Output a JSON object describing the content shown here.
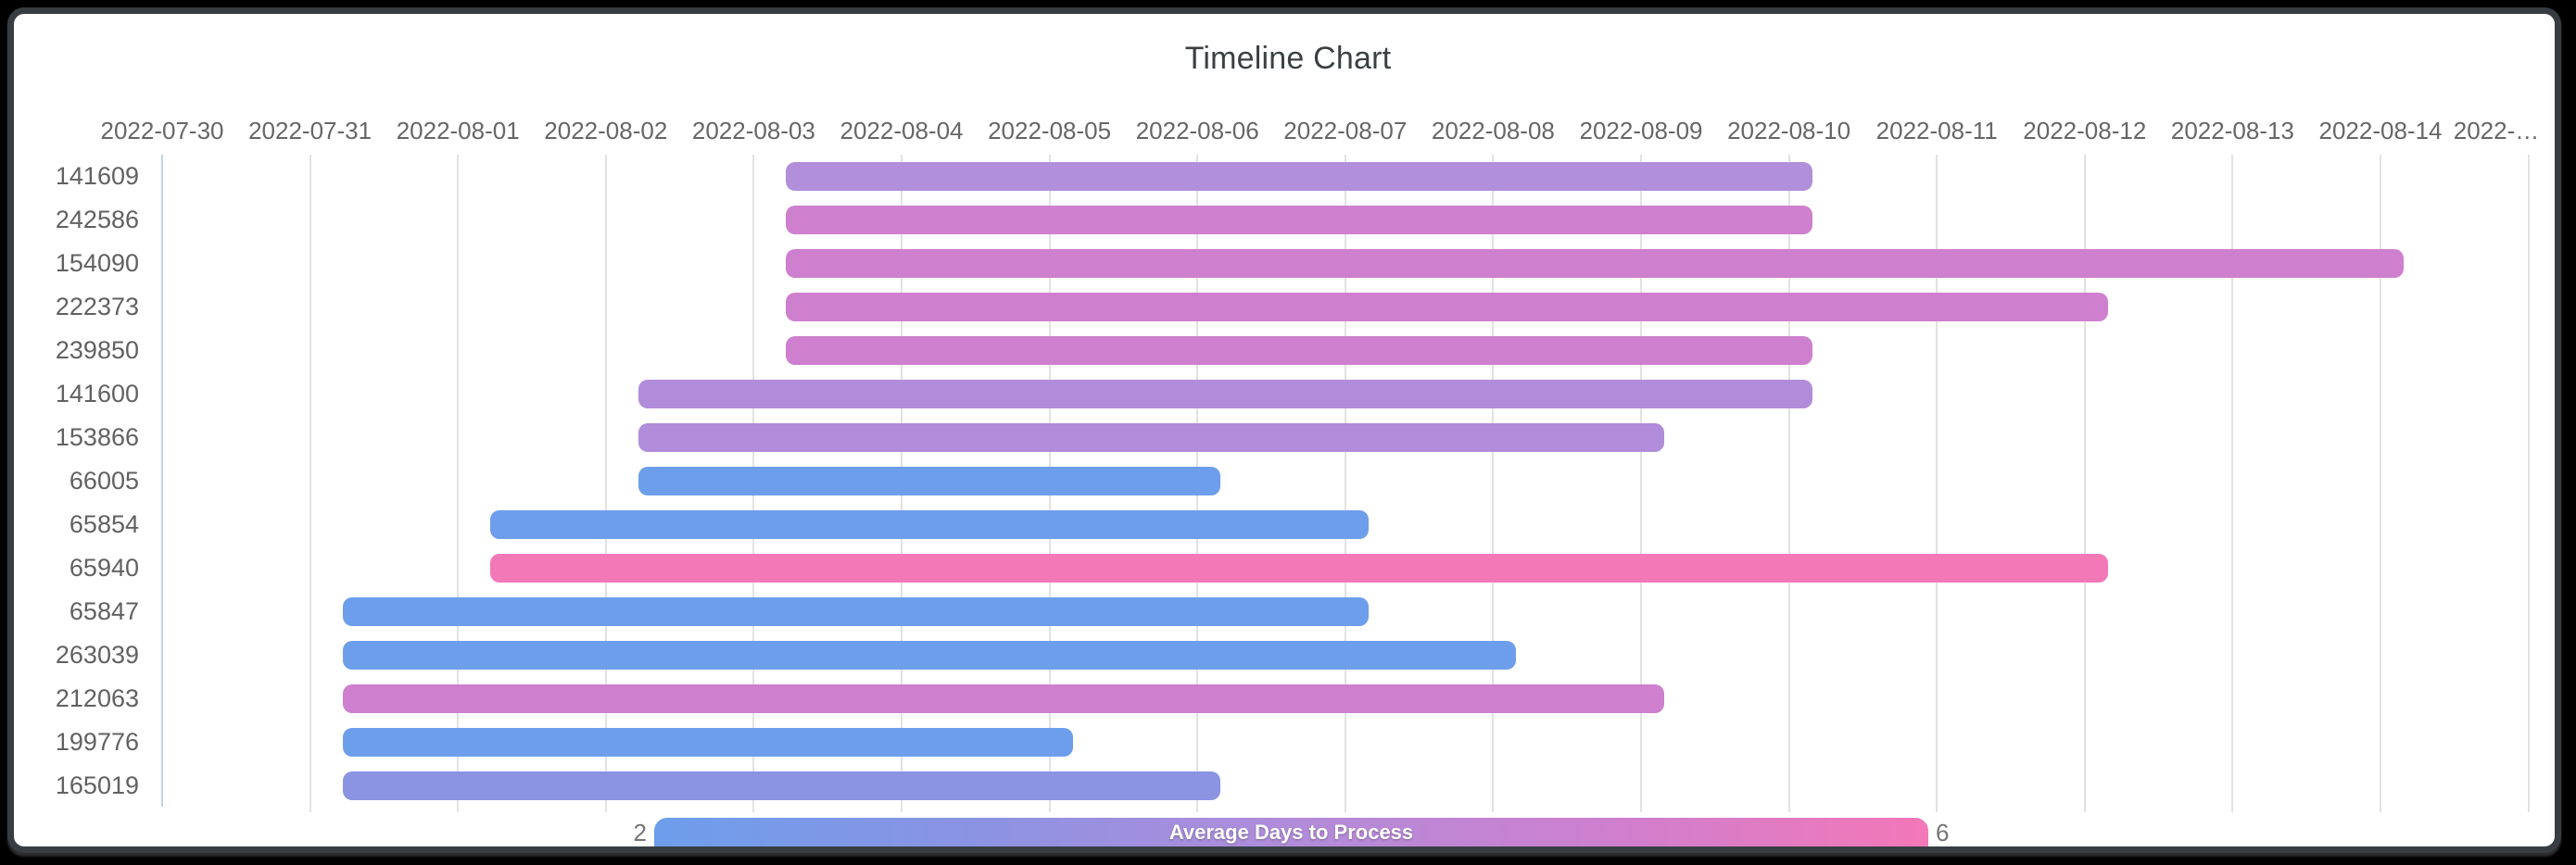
{
  "window": {
    "background": "#000000",
    "frame_border": "#373d42",
    "surface": "#ffffff"
  },
  "chart_data": {
    "type": "timeline",
    "title": "Timeline Chart",
    "x_axis": {
      "first_date": "2022-07-30",
      "tick_labels": [
        "2022-07-30",
        "2022-07-31",
        "2022-08-01",
        "2022-08-02",
        "2022-08-03",
        "2022-08-04",
        "2022-08-05",
        "2022-08-06",
        "2022-08-07",
        "2022-08-08",
        "2022-08-09",
        "2022-08-10",
        "2022-08-11",
        "2022-08-12",
        "2022-08-13",
        "2022-08-14"
      ],
      "overflow_label": "2022-…",
      "grid_on": true
    },
    "rows": [
      {
        "id": "141609",
        "start": "2022-08-03",
        "end": "2022-08-10",
        "color": "#b18fda"
      },
      {
        "id": "242586",
        "start": "2022-08-03",
        "end": "2022-08-10",
        "color": "#ce7fce"
      },
      {
        "id": "154090",
        "start": "2022-08-03",
        "end": "2022-08-14",
        "color": "#ce7fce"
      },
      {
        "id": "222373",
        "start": "2022-08-03",
        "end": "2022-08-12",
        "color": "#ce7fce"
      },
      {
        "id": "239850",
        "start": "2022-08-03",
        "end": "2022-08-10",
        "color": "#ce7fce"
      },
      {
        "id": "141600",
        "start": "2022-08-02",
        "end": "2022-08-10",
        "color": "#b18cda"
      },
      {
        "id": "153866",
        "start": "2022-08-02",
        "end": "2022-08-09",
        "color": "#b18cda"
      },
      {
        "id": "66005",
        "start": "2022-08-02",
        "end": "2022-08-06",
        "color": "#6d9eeb"
      },
      {
        "id": "65854",
        "start": "2022-08-01",
        "end": "2022-08-07",
        "color": "#6d9eeb"
      },
      {
        "id": "65940",
        "start": "2022-08-01",
        "end": "2022-08-12",
        "color": "#f378b7"
      },
      {
        "id": "65847",
        "start": "2022-07-31",
        "end": "2022-08-07",
        "color": "#6d9eeb"
      },
      {
        "id": "263039",
        "start": "2022-07-31",
        "end": "2022-08-08",
        "color": "#6d9eeb"
      },
      {
        "id": "212063",
        "start": "2022-07-31",
        "end": "2022-08-09",
        "color": "#ce7fce"
      },
      {
        "id": "199776",
        "start": "2022-07-31",
        "end": "2022-08-05",
        "color": "#6d9eeb"
      },
      {
        "id": "165019",
        "start": "2022-07-31",
        "end": "2022-08-06",
        "color": "#8b93e3"
      }
    ],
    "legend": {
      "title": "Average Days to Process",
      "min": "2",
      "max": "6",
      "gradient": [
        "#6d9eeb",
        "#8b93e3",
        "#b18cda",
        "#ce7fce",
        "#f378b7"
      ]
    },
    "colors": {
      "grid": "#e2e2e2",
      "first_grid": "#c5d1ea",
      "axis_text": "#666666",
      "row_text": "#616161",
      "title_text": "#3c4043"
    }
  }
}
